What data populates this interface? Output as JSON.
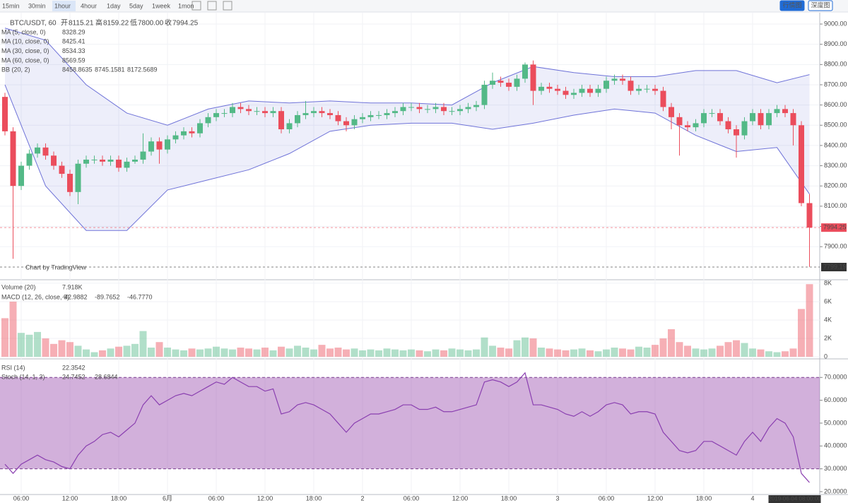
{
  "toolbar": {
    "intervals": [
      "15min",
      "30min",
      "1hour",
      "4hour",
      "1day",
      "5day",
      "1week",
      "1mon"
    ],
    "active": 2,
    "views": [
      "行情图",
      "深度图"
    ],
    "active_view": 0
  },
  "legend": {
    "symbol": "BTC/USDT, 60",
    "ohlc": [
      "开",
      "8115.21",
      "高",
      "8159.22",
      "低",
      "7800.00",
      "收",
      "7994.25"
    ],
    "indicators": [
      {
        "name": "MA (5, close, 0)",
        "values": [
          "8328.29"
        ],
        "colors": [
          "#b06ad1"
        ]
      },
      {
        "name": "MA (10, close, 0)",
        "values": [
          "8425.41"
        ],
        "colors": [
          "#5b8fd9"
        ]
      },
      {
        "name": "MA (30, close, 0)",
        "values": [
          "8534.33"
        ],
        "colors": [
          "#3f9f6a"
        ]
      },
      {
        "name": "MA (60, close, 0)",
        "values": [
          "8569.59"
        ],
        "colors": [
          "#d9536a"
        ]
      },
      {
        "name": "BB (20, 2)",
        "values": [
          "8458.8635",
          "8745.1581",
          "8172.5689"
        ],
        "colors": [
          "#e0333f",
          "#3b3fc4",
          "#e0333f"
        ]
      }
    ],
    "volume": {
      "name": "Volume (20)",
      "values": [
        "7.918K"
      ],
      "colors": [
        "#e0333f"
      ]
    },
    "macd": {
      "name": "MACD (12, 26, close, 9)",
      "values": [
        "-42.9882",
        "-89.7652",
        "-46.7770"
      ],
      "colors": [
        "#e0333f",
        "#3b3fc4",
        "#e0333f"
      ]
    },
    "rsi": {
      "name": "RSI (14)",
      "values": [
        "22.3542"
      ],
      "colors": [
        "#8a2e8a"
      ]
    },
    "stoch": {
      "name": "Stoch (14, 1, 3)",
      "values": [
        "24.7452",
        "28.6844"
      ],
      "colors": [
        "#3b3fc4",
        "#e0333f"
      ]
    },
    "watermark": "Chart by TradingView",
    "cursor_time": "2019-06-04 08:00:00"
  },
  "chart_data": [
    {
      "type": "candlestick",
      "up_color": "#53b987",
      "down_color": "#eb4d5c",
      "categories": [
        null,
        null,
        "06:00",
        null,
        null,
        null,
        null,
        null,
        "12:00",
        null,
        null,
        null,
        null,
        null,
        "18:00",
        null,
        null,
        null,
        null,
        null,
        "6月",
        null,
        null,
        null,
        null,
        null,
        "06:00",
        null,
        null,
        null,
        null,
        null,
        "12:00",
        null,
        null,
        null,
        null,
        null,
        "18:00",
        null,
        null,
        null,
        null,
        null,
        "2",
        null,
        null,
        null,
        null,
        null,
        "06:00",
        null,
        null,
        null,
        null,
        null,
        "12:00",
        null,
        null,
        null,
        null,
        null,
        "18:00",
        null,
        null,
        null,
        null,
        null,
        "3",
        null,
        null,
        null,
        null,
        null,
        "06:00",
        null,
        null,
        null,
        null,
        null,
        "12:00",
        null,
        null,
        null,
        null,
        null,
        "18:00",
        null,
        null,
        null,
        null,
        null,
        "4",
        null,
        null,
        null,
        null,
        null,
        null,
        null,
        null,
        null
      ],
      "candles": [
        [
          8640,
          8660,
          8450,
          8470
        ],
        [
          8470,
          8490,
          7840,
          8200
        ],
        [
          8200,
          8320,
          8180,
          8300
        ],
        [
          8300,
          8380,
          8280,
          8360
        ],
        [
          8360,
          8410,
          8340,
          8390
        ],
        [
          8390,
          8410,
          8330,
          8350
        ],
        [
          8350,
          8370,
          8280,
          8300
        ],
        [
          8300,
          8320,
          8240,
          8260
        ],
        [
          8260,
          8280,
          8150,
          8170
        ],
        [
          8170,
          8330,
          8110,
          8310
        ],
        [
          8310,
          8350,
          8290,
          8330
        ],
        [
          8330,
          8350,
          8310,
          8330
        ],
        [
          8330,
          8350,
          8300,
          8320
        ],
        [
          8320,
          8350,
          8300,
          8330
        ],
        [
          8330,
          8350,
          8270,
          8290
        ],
        [
          8290,
          8340,
          8270,
          8320
        ],
        [
          8320,
          8350,
          8310,
          8330
        ],
        [
          8330,
          8460,
          8310,
          8370
        ],
        [
          8370,
          8440,
          8350,
          8420
        ],
        [
          8420,
          8440,
          8310,
          8380
        ],
        [
          8380,
          8450,
          8360,
          8430
        ],
        [
          8430,
          8470,
          8410,
          8450
        ],
        [
          8450,
          8490,
          8430,
          8470
        ],
        [
          8470,
          8490,
          8440,
          8460
        ],
        [
          8460,
          8530,
          8440,
          8510
        ],
        [
          8510,
          8560,
          8490,
          8540
        ],
        [
          8540,
          8580,
          8520,
          8560
        ],
        [
          8560,
          8580,
          8540,
          8560
        ],
        [
          8560,
          8610,
          8540,
          8590
        ],
        [
          8590,
          8610,
          8560,
          8580
        ],
        [
          8580,
          8600,
          8550,
          8570
        ],
        [
          8570,
          8590,
          8550,
          8570
        ],
        [
          8570,
          8590,
          8540,
          8560
        ],
        [
          8560,
          8590,
          8540,
          8570
        ],
        [
          8570,
          8590,
          8460,
          8480
        ],
        [
          8480,
          8530,
          8460,
          8510
        ],
        [
          8510,
          8570,
          8490,
          8550
        ],
        [
          8550,
          8620,
          8530,
          8560
        ],
        [
          8560,
          8590,
          8540,
          8570
        ],
        [
          8570,
          8590,
          8540,
          8560
        ],
        [
          8560,
          8580,
          8530,
          8550
        ],
        [
          8550,
          8570,
          8500,
          8520
        ],
        [
          8520,
          8540,
          8470,
          8500
        ],
        [
          8500,
          8550,
          8480,
          8530
        ],
        [
          8530,
          8560,
          8510,
          8540
        ],
        [
          8540,
          8570,
          8520,
          8550
        ],
        [
          8550,
          8570,
          8530,
          8550
        ],
        [
          8550,
          8580,
          8530,
          8560
        ],
        [
          8560,
          8590,
          8540,
          8570
        ],
        [
          8570,
          8610,
          8550,
          8590
        ],
        [
          8590,
          8610,
          8570,
          8590
        ],
        [
          8590,
          8610,
          8560,
          8580
        ],
        [
          8580,
          8600,
          8560,
          8580
        ],
        [
          8580,
          8610,
          8560,
          8590
        ],
        [
          8590,
          8610,
          8550,
          8570
        ],
        [
          8570,
          8590,
          8550,
          8570
        ],
        [
          8570,
          8600,
          8550,
          8580
        ],
        [
          8580,
          8610,
          8560,
          8590
        ],
        [
          8590,
          8620,
          8570,
          8600
        ],
        [
          8600,
          8720,
          8580,
          8700
        ],
        [
          8700,
          8760,
          8680,
          8720
        ],
        [
          8720,
          8740,
          8690,
          8710
        ],
        [
          8710,
          8730,
          8670,
          8690
        ],
        [
          8690,
          8750,
          8670,
          8730
        ],
        [
          8730,
          8810,
          8710,
          8800
        ],
        [
          8800,
          8820,
          8600,
          8670
        ],
        [
          8670,
          8710,
          8650,
          8690
        ],
        [
          8690,
          8710,
          8660,
          8680
        ],
        [
          8680,
          8700,
          8650,
          8670
        ],
        [
          8670,
          8690,
          8630,
          8650
        ],
        [
          8650,
          8680,
          8630,
          8660
        ],
        [
          8660,
          8700,
          8640,
          8680
        ],
        [
          8680,
          8700,
          8640,
          8660
        ],
        [
          8660,
          8700,
          8640,
          8680
        ],
        [
          8680,
          8740,
          8660,
          8720
        ],
        [
          8720,
          8750,
          8700,
          8730
        ],
        [
          8730,
          8750,
          8700,
          8720
        ],
        [
          8720,
          8740,
          8650,
          8670
        ],
        [
          8670,
          8700,
          8650,
          8680
        ],
        [
          8680,
          8700,
          8660,
          8680
        ],
        [
          8680,
          8700,
          8650,
          8670
        ],
        [
          8670,
          8690,
          8570,
          8590
        ],
        [
          8590,
          8610,
          8480,
          8540
        ],
        [
          8540,
          8560,
          8350,
          8500
        ],
        [
          8500,
          8520,
          8470,
          8490
        ],
        [
          8490,
          8530,
          8470,
          8510
        ],
        [
          8510,
          8580,
          8490,
          8560
        ],
        [
          8560,
          8580,
          8540,
          8560
        ],
        [
          8560,
          8580,
          8500,
          8520
        ],
        [
          8520,
          8540,
          8460,
          8480
        ],
        [
          8480,
          8500,
          8340,
          8450
        ],
        [
          8450,
          8540,
          8430,
          8520
        ],
        [
          8520,
          8580,
          8500,
          8560
        ],
        [
          8560,
          8580,
          8480,
          8500
        ],
        [
          8500,
          8580,
          8480,
          8560
        ],
        [
          8560,
          8600,
          8540,
          8580
        ],
        [
          8580,
          8600,
          8540,
          8560
        ],
        [
          8560,
          8580,
          8400,
          8500
        ],
        [
          8500,
          8520,
          8100,
          8115.21
        ],
        [
          8115.21,
          8159.22,
          7800,
          7994.25
        ]
      ],
      "bands": {
        "color": "#6e72d8",
        "index": [
          0,
          5,
          10,
          15,
          20,
          25,
          30,
          35,
          40,
          45,
          50,
          55,
          60,
          65,
          70,
          75,
          80,
          85,
          90,
          95,
          99
        ],
        "upper": [
          8980,
          8920,
          8700,
          8560,
          8500,
          8580,
          8620,
          8610,
          8620,
          8610,
          8610,
          8600,
          8710,
          8790,
          8760,
          8740,
          8740,
          8770,
          8770,
          8710,
          8750
        ],
        "lower": [
          8700,
          8200,
          7980,
          7980,
          8180,
          8230,
          8280,
          8360,
          8470,
          8500,
          8510,
          8510,
          8480,
          8510,
          8550,
          8580,
          8560,
          8450,
          8370,
          8390,
          8160
        ]
      },
      "markers": [
        {
          "value": 7994.25,
          "color": "#eb4d5c"
        },
        {
          "value": 7799.19,
          "color": "#333333"
        }
      ],
      "ylim": [
        7740,
        9042
      ],
      "yticks": [
        {
          "value": 7900,
          "label": "7900.00"
        },
        {
          "value": 8000,
          "label": "8000.00"
        },
        {
          "value": 8100,
          "label": "8100.00"
        },
        {
          "value": 8200,
          "label": "8200.00"
        },
        {
          "value": 8300,
          "label": "8300.00"
        },
        {
          "value": 8400,
          "label": "8400.00"
        },
        {
          "value": 8500,
          "label": "8500.00"
        },
        {
          "value": 8600,
          "label": "8600.00"
        },
        {
          "value": 8700,
          "label": "8700.00"
        },
        {
          "value": 8800,
          "label": "8800.00"
        },
        {
          "value": 8900,
          "label": "8900.00"
        },
        {
          "value": 9000,
          "label": "9000.00"
        }
      ],
      "grid": true
    },
    {
      "type": "bar",
      "values": [
        4.2,
        6.0,
        2.6,
        2.4,
        2.7,
        2.0,
        1.4,
        1.8,
        1.6,
        1.2,
        0.8,
        0.5,
        0.7,
        0.9,
        1.1,
        1.2,
        1.4,
        2.8,
        1.0,
        1.6,
        1.0,
        0.8,
        0.7,
        0.9,
        0.8,
        0.9,
        1.1,
        0.9,
        0.8,
        1.0,
        0.9,
        0.8,
        1.0,
        0.7,
        1.1,
        0.9,
        1.2,
        1.0,
        0.8,
        1.3,
        0.9,
        1.0,
        0.8,
        0.9,
        0.7,
        0.8,
        0.7,
        0.9,
        0.8,
        0.7,
        0.8,
        0.7,
        0.6,
        0.8,
        0.7,
        0.9,
        0.8,
        0.7,
        0.8,
        2.1,
        1.2,
        1.0,
        0.9,
        1.8,
        2.1,
        2.0,
        1.0,
        0.9,
        0.8,
        0.7,
        0.8,
        0.9,
        0.7,
        0.6,
        0.8,
        1.0,
        0.9,
        0.8,
        1.1,
        1.0,
        1.3,
        2.0,
        3.0,
        1.6,
        1.2,
        0.9,
        0.8,
        0.9,
        1.2,
        1.6,
        1.8,
        1.5,
        0.9,
        0.8,
        0.6,
        0.5,
        0.6,
        0.9,
        5.2,
        7.9
      ],
      "ylim": [
        -0.15,
        8.3
      ],
      "yticks": [
        0,
        {
          "value": 2,
          "label": "2K"
        },
        {
          "value": 4,
          "label": "4K"
        },
        {
          "value": 6,
          "label": "6K"
        },
        {
          "value": 8,
          "label": "8K"
        }
      ]
    },
    {
      "type": "line",
      "color": "#8a3fb0",
      "values": [
        32,
        28,
        32,
        34,
        36,
        34,
        33,
        31,
        30,
        36,
        40,
        42,
        45,
        46,
        44,
        47,
        50,
        58,
        62,
        58,
        60,
        62,
        63,
        62,
        64,
        66,
        68,
        67,
        70,
        68,
        66,
        66,
        64,
        65,
        54,
        55,
        58,
        59,
        58,
        56,
        54,
        50,
        46,
        50,
        52,
        54,
        54,
        55,
        56,
        58,
        58,
        56,
        56,
        57,
        55,
        55,
        56,
        57,
        58,
        68,
        69,
        68,
        66,
        68,
        72,
        58,
        58,
        57,
        56,
        54,
        53,
        55,
        53,
        55,
        58,
        59,
        58,
        54,
        55,
        55,
        54,
        46,
        42,
        38,
        37,
        38,
        42,
        42,
        40,
        38,
        36,
        42,
        46,
        42,
        48,
        52,
        50,
        44,
        28,
        24
      ],
      "levels": [
        30,
        70
      ],
      "ylim": [
        18.75,
        77.5
      ],
      "yticks": [
        {
          "value": 20,
          "label": "20.0000"
        },
        {
          "value": 30,
          "label": "30.0000"
        },
        {
          "value": 40,
          "label": "40.0000"
        },
        {
          "value": 50,
          "label": "50.0000"
        },
        {
          "value": 60,
          "label": "60.0000"
        },
        {
          "value": 70,
          "label": "70.0000"
        }
      ]
    }
  ]
}
